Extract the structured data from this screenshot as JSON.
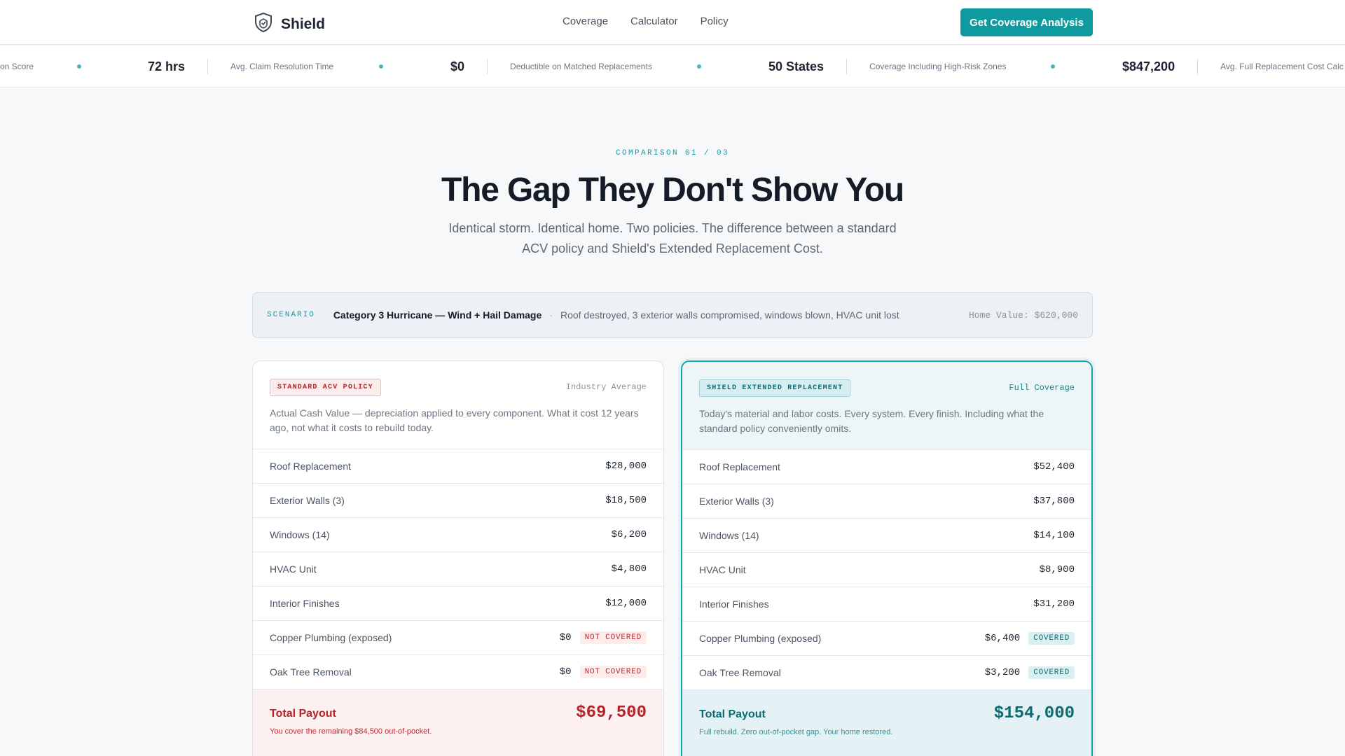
{
  "brand": {
    "name": "Shield"
  },
  "nav": {
    "links": [
      "Coverage",
      "Calculator",
      "Policy"
    ],
    "cta": "Get Coverage Analysis"
  },
  "ticker": [
    {
      "value": "",
      "label": "on Score"
    },
    {
      "value": "72 hrs",
      "label": "Avg. Claim Resolution Time"
    },
    {
      "value": "$0",
      "label": "Deductible on Matched Replacements"
    },
    {
      "value": "50 States",
      "label": "Coverage Including High-Risk Zones"
    },
    {
      "value": "$847,200",
      "label": "Avg. Full Replacement Cost Calc"
    }
  ],
  "hero": {
    "eyebrow": "COMPARISON 01 / 03",
    "title": "The Gap They Don't Show You",
    "subtitle": "Identical storm. Identical home. Two policies. The difference between a standard ACV policy and Shield's Extended Replacement Cost."
  },
  "scenario": {
    "tag": "SCENARIO",
    "title": "Category 3 Hurricane — Wind + Hail Damage",
    "separator": "·",
    "description": "Roof destroyed, 3 exterior walls compromised, windows blown, HVAC unit lost",
    "home_value": "Home Value: $620,000"
  },
  "standard": {
    "badge": "STANDARD ACV POLICY",
    "right_label": "Industry Average",
    "description": "Actual Cash Value — depreciation applied to every component. What it cost 12 years ago, not what it costs to rebuild today.",
    "rows": [
      {
        "label": "Roof Replacement",
        "value": "$28,000",
        "status": ""
      },
      {
        "label": "Exterior Walls (3)",
        "value": "$18,500",
        "status": ""
      },
      {
        "label": "Windows (14)",
        "value": "$6,200",
        "status": ""
      },
      {
        "label": "HVAC Unit",
        "value": "$4,800",
        "status": ""
      },
      {
        "label": "Interior Finishes",
        "value": "$12,000",
        "status": ""
      },
      {
        "label": "Copper Plumbing (exposed)",
        "value": "$0",
        "status": "NOT COVERED"
      },
      {
        "label": "Oak Tree Removal",
        "value": "$0",
        "status": "NOT COVERED"
      }
    ],
    "total_label": "Total Payout",
    "total_value": "$69,500",
    "total_note": "You cover the remaining $84,500 out-of-pocket."
  },
  "extended": {
    "badge": "SHIELD EXTENDED REPLACEMENT",
    "right_label": "Full Coverage",
    "description": "Today's material and labor costs. Every system. Every finish. Including what the standard policy conveniently omits.",
    "rows": [
      {
        "label": "Roof Replacement",
        "value": "$52,400",
        "status": ""
      },
      {
        "label": "Exterior Walls (3)",
        "value": "$37,800",
        "status": ""
      },
      {
        "label": "Windows (14)",
        "value": "$14,100",
        "status": ""
      },
      {
        "label": "HVAC Unit",
        "value": "$8,900",
        "status": ""
      },
      {
        "label": "Interior Finishes",
        "value": "$31,200",
        "status": ""
      },
      {
        "label": "Copper Plumbing (exposed)",
        "value": "$6,400",
        "status": "COVERED"
      },
      {
        "label": "Oak Tree Removal",
        "value": "$3,200",
        "status": "COVERED"
      }
    ],
    "total_label": "Total Payout",
    "total_value": "$154,000",
    "total_note": "Full rebuild. Zero out-of-pocket gap. Your home restored."
  },
  "colors": {
    "accent": "#0e9a9e",
    "danger": "#b3242b",
    "ink": "#141c28"
  }
}
